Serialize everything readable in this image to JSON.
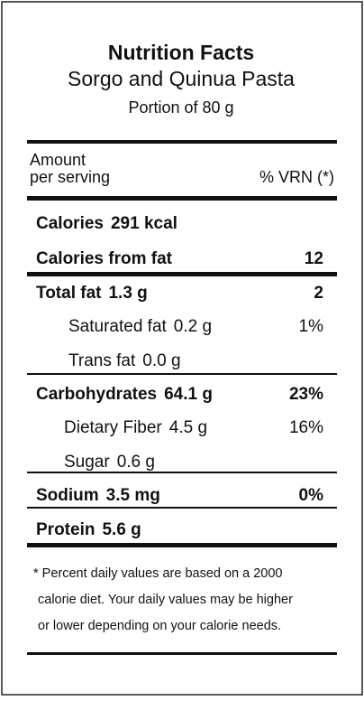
{
  "header": {
    "title": "Nutrition Facts",
    "product": "Sorgo and Quinua Pasta",
    "portion": "Portion of 80 g"
  },
  "columns": {
    "amount": "Amount",
    "per_serving": "per serving",
    "dv": "% VRN (*)"
  },
  "rows": [
    {
      "name": "Calories",
      "amount": "291 kcal"
    },
    {
      "name": "Calories from fat",
      "dv": 12
    },
    {
      "name": "Total fat",
      "amount": "1.3 g",
      "dv": 2
    },
    {
      "name": "Saturated fat",
      "amount": "0.2 g",
      "dv": "1%"
    },
    {
      "name": "Trans fat",
      "amount": "0.0 g"
    },
    {
      "name": "Carbohydrates",
      "amount": "64.1 g",
      "dv": "23%"
    },
    {
      "name": "Dietary Fiber",
      "amount": "4.5 g",
      "dv": "16%"
    },
    {
      "name": "Sugar",
      "amount": "0.6 g"
    },
    {
      "name": "Sodium",
      "amount": "3.5 mg",
      "dv": "0%"
    },
    {
      "name": "Protein",
      "amount": "5.6 g"
    }
  ],
  "footnote": [
    "* Percent daily values are based on a 2000",
    "calorie diet. Your daily values may be higher",
    "or lower depending on your calorie needs."
  ]
}
